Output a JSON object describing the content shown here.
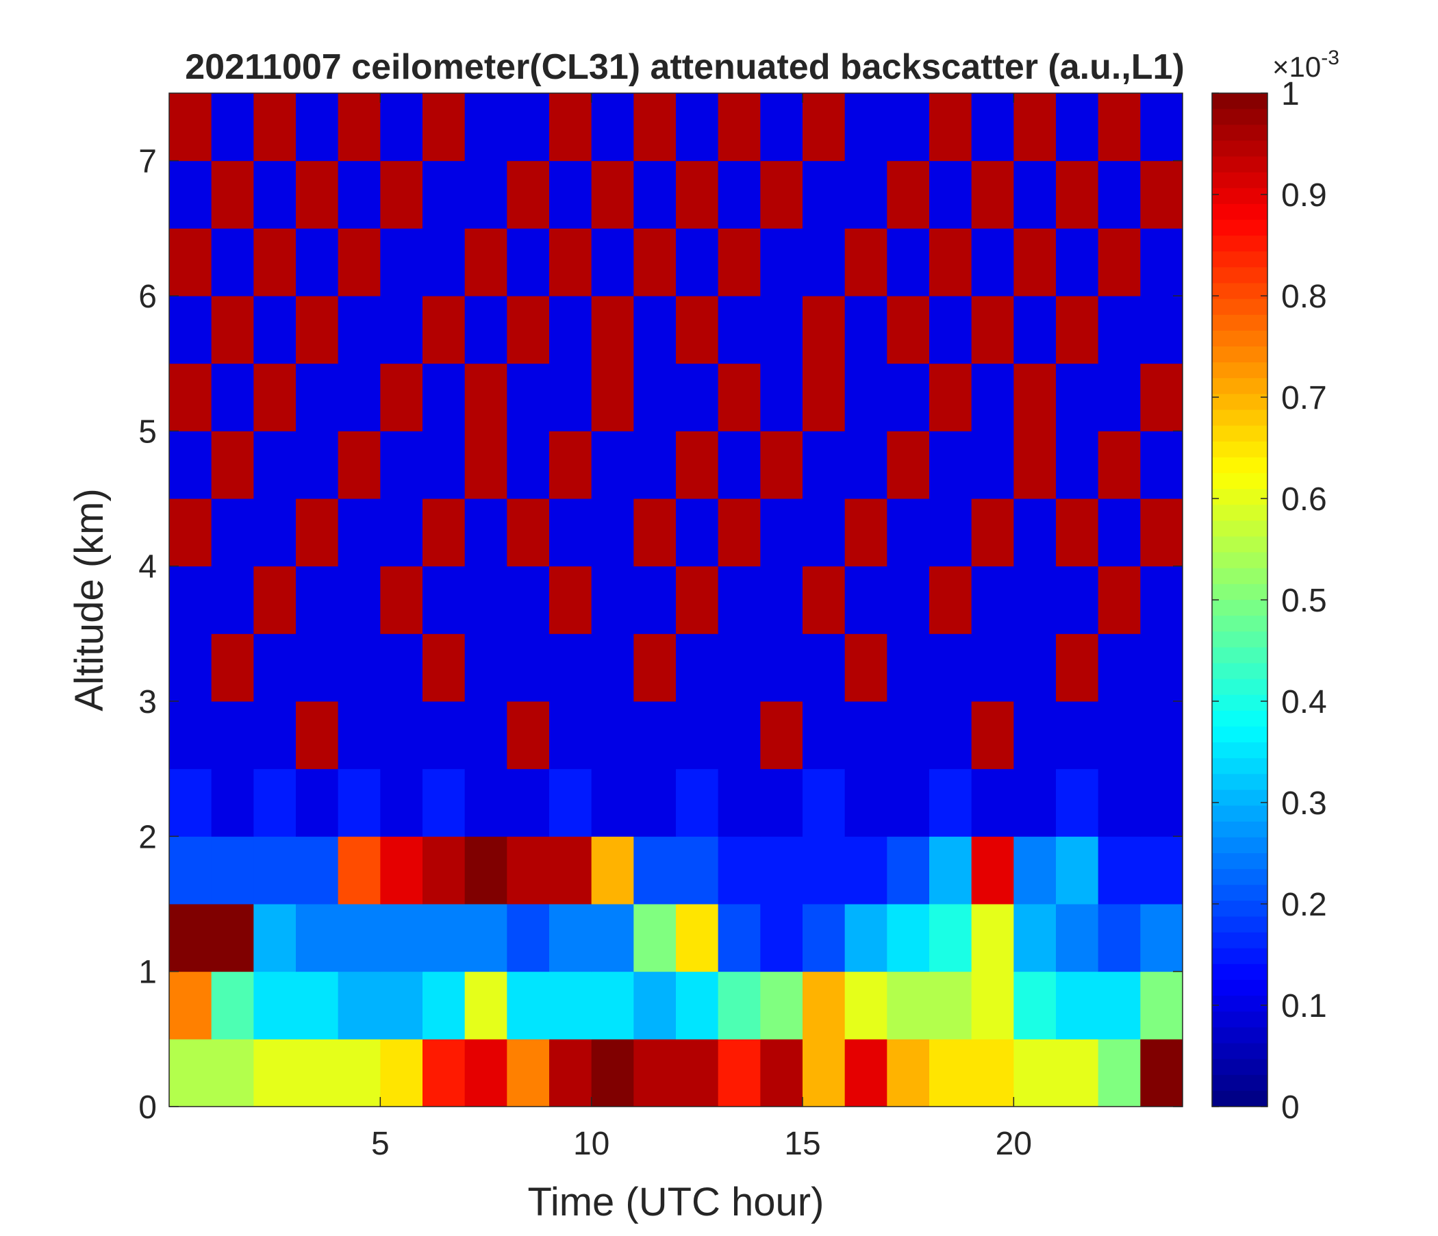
{
  "chart_data": {
    "type": "heatmap",
    "title": "20211007 ceilometer(CL31) attenuated backscatter (a.u.,L1)",
    "x_label": "Time (UTC hour)",
    "y_label": "Altitude (km)",
    "x": [
      0.5,
      1.5,
      2.5,
      3.5,
      4.5,
      5.5,
      6.5,
      7.5,
      8.5,
      9.5,
      10.5,
      11.5,
      12.5,
      13.5,
      14.5,
      15.5,
      16.5,
      17.5,
      18.5,
      19.5,
      20.5,
      21.5,
      22.5,
      23.5
    ],
    "y": [
      0.25,
      0.75,
      1.25,
      1.75,
      2.25,
      2.75,
      3.25,
      3.75,
      4.25,
      4.75,
      5.25,
      5.75,
      6.25,
      6.75,
      7.25
    ],
    "z": [
      [
        0.55,
        0.55,
        0.6,
        0.6,
        0.6,
        0.65,
        0.85,
        0.9,
        0.75,
        0.95,
        1,
        0.95,
        0.95,
        0.85,
        0.95,
        0.7,
        0.9,
        0.7,
        0.65,
        0.65,
        0.6,
        0.6,
        0.5,
        1
      ],
      [
        0.75,
        0.45,
        0.35,
        0.35,
        0.3,
        0.3,
        0.35,
        0.6,
        0.35,
        0.35,
        0.35,
        0.3,
        0.35,
        0.45,
        0.5,
        0.7,
        0.6,
        0.55,
        0.55,
        0.6,
        0.4,
        0.35,
        0.35,
        0.5
      ],
      [
        1,
        1,
        0.3,
        0.25,
        0.25,
        0.25,
        0.25,
        0.25,
        0.2,
        0.25,
        0.25,
        0.5,
        0.65,
        0.2,
        0.15,
        0.2,
        0.3,
        0.35,
        0.4,
        0.6,
        0.3,
        0.25,
        0.2,
        0.25
      ],
      [
        0.2,
        0.2,
        0.2,
        0.2,
        0.8,
        0.9,
        0.95,
        1,
        0.95,
        0.95,
        0.7,
        0.2,
        0.2,
        0.15,
        0.15,
        0.15,
        0.15,
        0.2,
        0.3,
        0.9,
        0.25,
        0.3,
        0.15,
        0.15
      ],
      [
        0.15,
        0.1,
        0.15,
        0.1,
        0.15,
        0.1,
        0.15,
        0.1,
        0.1,
        0.15,
        0.1,
        0.1,
        0.15,
        0.1,
        0.1,
        0.15,
        0.1,
        0.1,
        0.15,
        0.1,
        0.1,
        0.15,
        0.1,
        0.1
      ],
      [
        0.1,
        0.1,
        0.1,
        0.95,
        0.1,
        0.1,
        0.1,
        0.1,
        0.95,
        0.1,
        0.1,
        0.1,
        0.1,
        0.1,
        0.95,
        0.1,
        0.1,
        0.1,
        0.1,
        0.95,
        0.1,
        0.1,
        0.1,
        0.1
      ],
      [
        0.1,
        0.95,
        0.1,
        0.1,
        0.1,
        0.1,
        0.95,
        0.1,
        0.1,
        0.1,
        0.1,
        0.95,
        0.1,
        0.1,
        0.1,
        0.1,
        0.95,
        0.1,
        0.1,
        0.1,
        0.1,
        0.95,
        0.1,
        0.1
      ],
      [
        0.1,
        0.1,
        0.95,
        0.1,
        0.1,
        0.95,
        0.1,
        0.1,
        0.1,
        0.95,
        0.1,
        0.1,
        0.95,
        0.1,
        0.1,
        0.95,
        0.1,
        0.1,
        0.95,
        0.1,
        0.1,
        0.1,
        0.95,
        0.1
      ],
      [
        0.95,
        0.1,
        0.1,
        0.95,
        0.1,
        0.1,
        0.95,
        0.1,
        0.95,
        0.1,
        0.1,
        0.95,
        0.1,
        0.95,
        0.1,
        0.1,
        0.95,
        0.1,
        0.1,
        0.95,
        0.1,
        0.95,
        0.1,
        0.95
      ],
      [
        0.1,
        0.95,
        0.1,
        0.1,
        0.95,
        0.1,
        0.1,
        0.95,
        0.1,
        0.95,
        0.1,
        0.1,
        0.95,
        0.1,
        0.95,
        0.1,
        0.1,
        0.95,
        0.1,
        0.1,
        0.95,
        0.1,
        0.95,
        0.1
      ],
      [
        0.95,
        0.1,
        0.95,
        0.1,
        0.1,
        0.95,
        0.1,
        0.95,
        0.1,
        0.1,
        0.95,
        0.1,
        0.1,
        0.95,
        0.1,
        0.95,
        0.1,
        0.1,
        0.95,
        0.1,
        0.95,
        0.1,
        0.1,
        0.95
      ],
      [
        0.1,
        0.95,
        0.1,
        0.95,
        0.1,
        0.1,
        0.95,
        0.1,
        0.95,
        0.1,
        0.95,
        0.1,
        0.95,
        0.1,
        0.1,
        0.95,
        0.1,
        0.95,
        0.1,
        0.95,
        0.1,
        0.95,
        0.1,
        0.1
      ],
      [
        0.95,
        0.1,
        0.95,
        0.1,
        0.95,
        0.1,
        0.1,
        0.95,
        0.1,
        0.95,
        0.1,
        0.95,
        0.1,
        0.95,
        0.1,
        0.1,
        0.95,
        0.1,
        0.95,
        0.1,
        0.95,
        0.1,
        0.95,
        0.1
      ],
      [
        0.1,
        0.95,
        0.1,
        0.95,
        0.1,
        0.95,
        0.1,
        0.1,
        0.95,
        0.1,
        0.95,
        0.1,
        0.95,
        0.1,
        0.95,
        0.1,
        0.1,
        0.95,
        0.1,
        0.95,
        0.1,
        0.95,
        0.1,
        0.95
      ],
      [
        0.95,
        0.1,
        0.95,
        0.1,
        0.95,
        0.1,
        0.95,
        0.1,
        0.1,
        0.95,
        0.1,
        0.95,
        0.1,
        0.95,
        0.1,
        0.95,
        0.1,
        0.1,
        0.95,
        0.1,
        0.95,
        0.1,
        0.95,
        0.1
      ]
    ],
    "xlim": [
      0,
      24
    ],
    "xticks": [
      5,
      10,
      15,
      20
    ],
    "ylim": [
      0,
      7.5
    ],
    "yticks": [
      0,
      1,
      2,
      3,
      4,
      5,
      6,
      7
    ],
    "colormap": "jet",
    "clim": [
      0,
      1
    ],
    "cticks": [
      0,
      0.1,
      0.2,
      0.3,
      0.4,
      0.5,
      0.6,
      0.7,
      0.8,
      0.9,
      1
    ],
    "colorbar_multiplier": {
      "base": "×10",
      "exponent": "-3"
    }
  }
}
